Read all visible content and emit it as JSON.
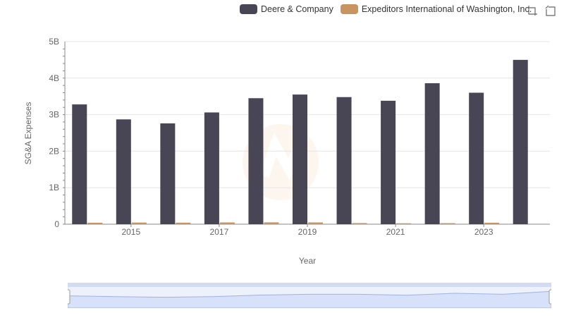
{
  "chart_data": {
    "type": "bar",
    "xlabel": "Year",
    "ylabel": "SG&A Expenses",
    "categories": [
      "2014",
      "2015",
      "2016",
      "2017",
      "2018",
      "2019",
      "2020",
      "2021",
      "2022",
      "2023",
      "2024"
    ],
    "x_tick_labels": [
      "2015",
      "2017",
      "2019",
      "2021",
      "2023"
    ],
    "y_tick_labels": [
      "0",
      "1B",
      "2B",
      "3B",
      "4B",
      "5B"
    ],
    "ylim": [
      0,
      5000000000
    ],
    "grid": true,
    "legend_position": "top-right",
    "series": [
      {
        "name": "Deere & Company",
        "color": "#484655",
        "values": [
          3280000000,
          2870000000,
          2760000000,
          3060000000,
          3450000000,
          3550000000,
          3480000000,
          3380000000,
          3860000000,
          3600000000,
          4500000000
        ]
      },
      {
        "name": "Expeditors International of Washington, Inc.",
        "color": "#c8945f",
        "values": [
          40000000,
          45000000,
          42000000,
          48000000,
          50000000,
          48000000,
          30000000,
          25000000,
          28000000,
          40000000,
          null
        ]
      }
    ]
  },
  "toolbar": {
    "zoom_icon": "zoom-select-icon",
    "reset_icon": "zoom-reset-icon"
  },
  "slider": {
    "overview_values": [
      0.62,
      0.58,
      0.55,
      0.58,
      0.66,
      0.7,
      0.7,
      0.65,
      0.75,
      0.7,
      0.85
    ]
  }
}
